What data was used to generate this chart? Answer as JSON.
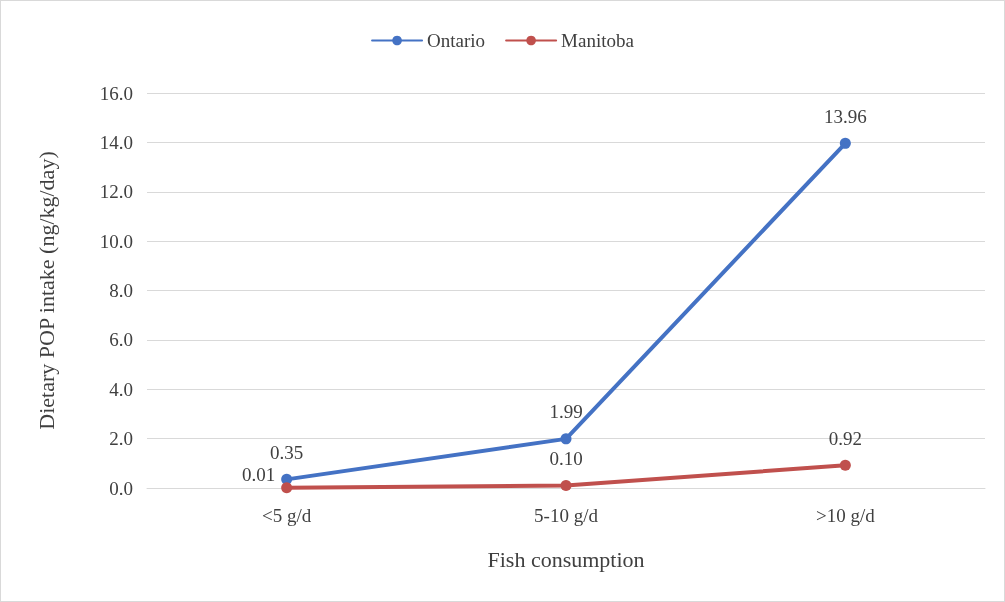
{
  "chart_data": {
    "type": "line",
    "xlabel": "Fish consumption",
    "ylabel": "Dietary POP intake (ng/kg/day)",
    "categories": [
      "<5 g/d",
      "5-10 g/d",
      ">10 g/d"
    ],
    "series": [
      {
        "name": "Ontario",
        "color": "#4472c4",
        "values": [
          0.35,
          1.99,
          13.96
        ],
        "value_labels": [
          "0.35",
          "1.99",
          "13.96"
        ]
      },
      {
        "name": "Manitoba",
        "color": "#c0504d",
        "values": [
          0.01,
          0.1,
          0.92
        ],
        "value_labels": [
          "0.01",
          "0.10",
          "0.92"
        ]
      }
    ],
    "ylim": [
      0,
      16
    ],
    "yticks": [
      {
        "value": 0,
        "label": "0.0"
      },
      {
        "value": 2,
        "label": "2.0"
      },
      {
        "value": 4,
        "label": "4.0"
      },
      {
        "value": 6,
        "label": "6.0"
      },
      {
        "value": 8,
        "label": "8.0"
      },
      {
        "value": 10,
        "label": "10.0"
      },
      {
        "value": 12,
        "label": "12.0"
      },
      {
        "value": 14,
        "label": "14.0"
      },
      {
        "value": 16,
        "label": "16.0"
      }
    ],
    "grid": "y",
    "legend": "top",
    "marker": "circle",
    "line_style": "solid"
  }
}
